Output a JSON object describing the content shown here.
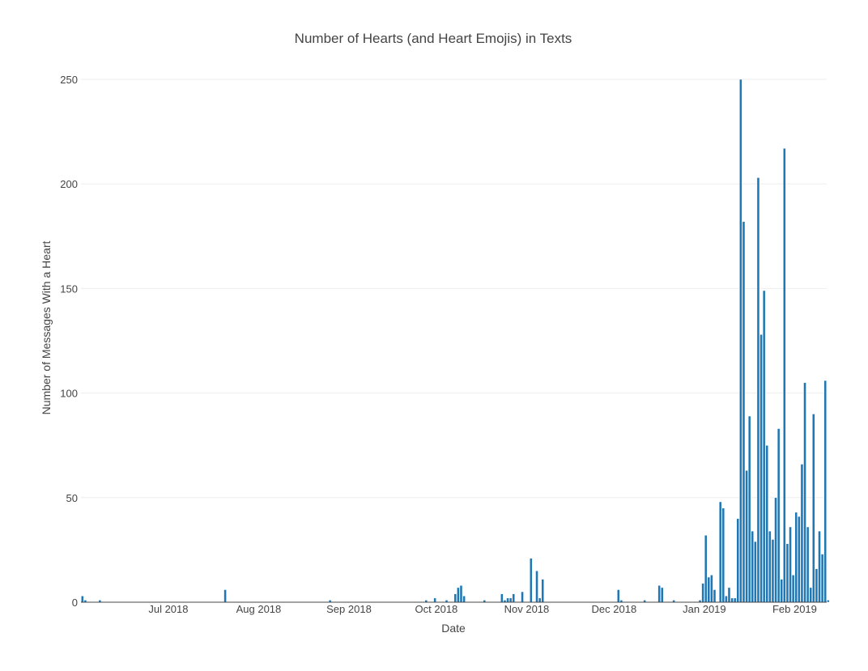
{
  "chart_data": {
    "type": "bar",
    "title": "Number of Hearts (and Heart Emojis) in Texts",
    "xlabel": "Date",
    "ylabel": "Number of Messages With a Heart",
    "ylim": [
      0,
      250
    ],
    "xlim": [
      "2018-06-01",
      "2019-02-12"
    ],
    "grid": true,
    "color": "#1f77b4",
    "yticks": [
      0,
      50,
      100,
      150,
      200,
      250
    ],
    "xticks": [
      {
        "date": "2018-07-01",
        "label": "Jul 2018"
      },
      {
        "date": "2018-08-01",
        "label": "Aug 2018"
      },
      {
        "date": "2018-09-01",
        "label": "Sep 2018"
      },
      {
        "date": "2018-10-01",
        "label": "Oct 2018"
      },
      {
        "date": "2018-11-01",
        "label": "Nov 2018"
      },
      {
        "date": "2018-12-01",
        "label": "Dec 2018"
      },
      {
        "date": "2019-01-01",
        "label": "Jan 2019"
      },
      {
        "date": "2019-02-01",
        "label": "Feb 2019"
      }
    ],
    "x": [
      "2018-06-01",
      "2018-06-02",
      "2018-06-07",
      "2018-07-20",
      "2018-08-25",
      "2018-09-27",
      "2018-09-30",
      "2018-10-04",
      "2018-10-07",
      "2018-10-08",
      "2018-10-09",
      "2018-10-10",
      "2018-10-17",
      "2018-10-23",
      "2018-10-24",
      "2018-10-25",
      "2018-10-26",
      "2018-10-27",
      "2018-10-30",
      "2018-11-02",
      "2018-11-04",
      "2018-11-05",
      "2018-11-06",
      "2018-12-02",
      "2018-12-03",
      "2018-12-11",
      "2018-12-16",
      "2018-12-17",
      "2018-12-21",
      "2018-12-30",
      "2018-12-31",
      "2019-01-01",
      "2019-01-02",
      "2019-01-03",
      "2019-01-04",
      "2019-01-06",
      "2019-01-07",
      "2019-01-08",
      "2019-01-09",
      "2019-01-10",
      "2019-01-11",
      "2019-01-12",
      "2019-01-13",
      "2019-01-14",
      "2019-01-15",
      "2019-01-16",
      "2019-01-17",
      "2019-01-18",
      "2019-01-19",
      "2019-01-20",
      "2019-01-21",
      "2019-01-22",
      "2019-01-23",
      "2019-01-24",
      "2019-01-25",
      "2019-01-26",
      "2019-01-27",
      "2019-01-28",
      "2019-01-29",
      "2019-01-30",
      "2019-01-31",
      "2019-02-01",
      "2019-02-02",
      "2019-02-03",
      "2019-02-04",
      "2019-02-05",
      "2019-02-06",
      "2019-02-07",
      "2019-02-08",
      "2019-02-09",
      "2019-02-10",
      "2019-02-11",
      "2019-02-12"
    ],
    "values": [
      3,
      1,
      1,
      6,
      1,
      1,
      2,
      1,
      4,
      7,
      8,
      3,
      1,
      4,
      1,
      2,
      2,
      4,
      5,
      21,
      15,
      2,
      11,
      6,
      1,
      1,
      8,
      7,
      1,
      1,
      9,
      32,
      12,
      13,
      6,
      48,
      45,
      3,
      7,
      2,
      2,
      40,
      250,
      182,
      63,
      89,
      34,
      29,
      203,
      128,
      149,
      75,
      34,
      30,
      50,
      83,
      11,
      217,
      28,
      36,
      13,
      43,
      41,
      66,
      105,
      36,
      7,
      90,
      16,
      34,
      23,
      106,
      1
    ]
  }
}
